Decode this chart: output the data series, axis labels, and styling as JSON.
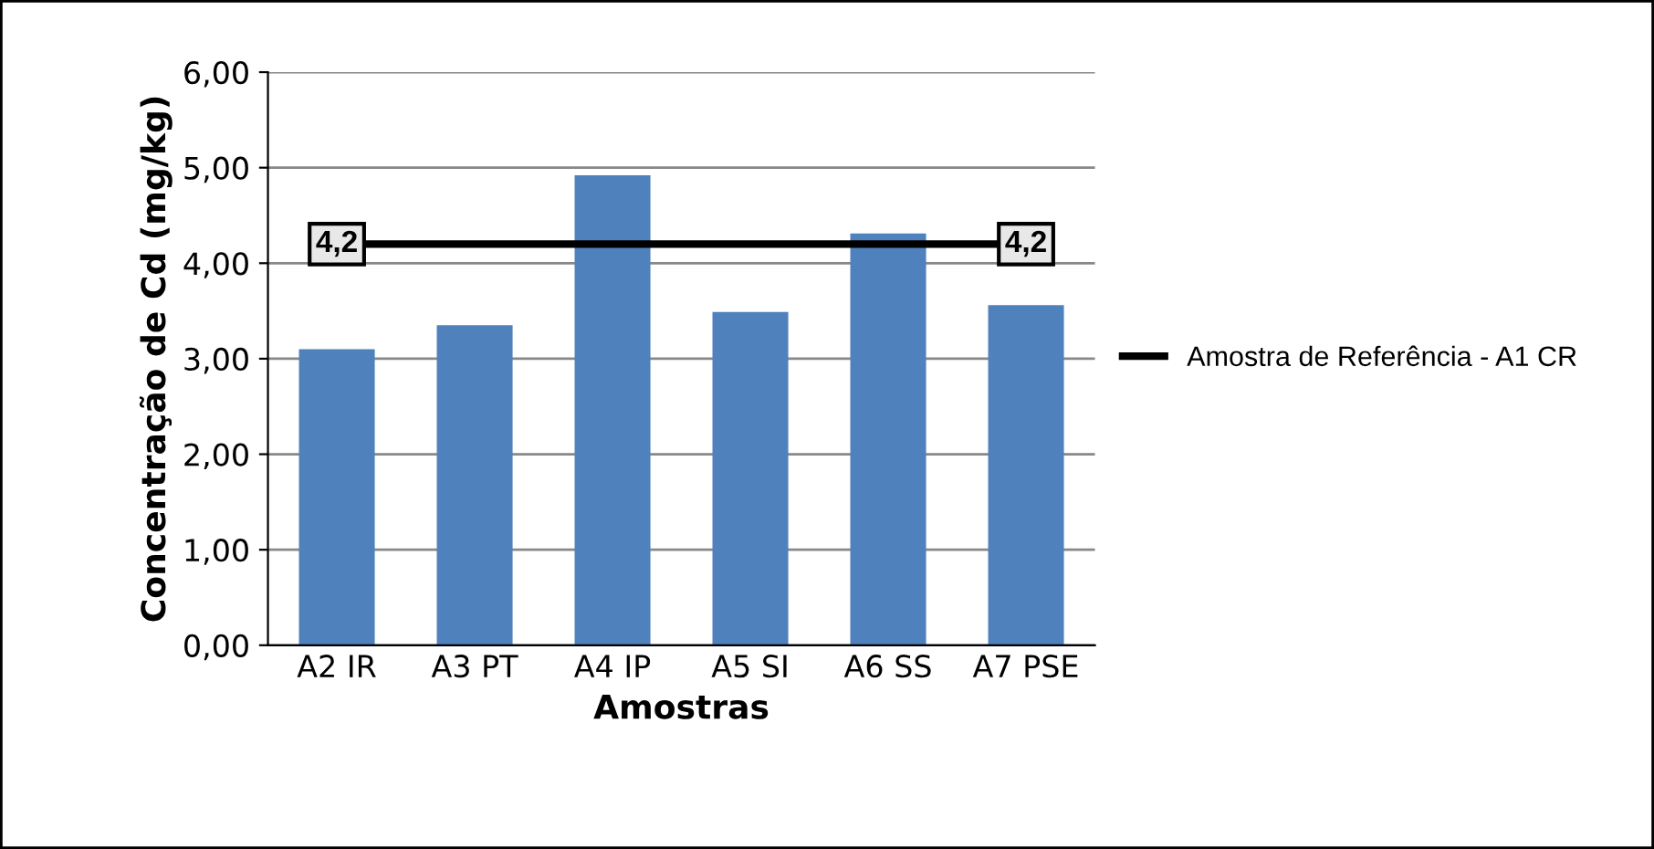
{
  "chart_data": {
    "type": "bar",
    "xlabel": "Amostras",
    "ylabel": "Concentração de Cd (mg/kg)",
    "categories": [
      "A2 IR",
      "A3 PT",
      "A4 IP",
      "A5 SI",
      "A6 SS",
      "A7 PSE"
    ],
    "series": [
      {
        "color": "#4f81bd",
        "values": [
          3.1,
          3.35,
          4.92,
          3.49,
          4.31,
          3.56
        ]
      },
      {
        "type": "line",
        "name": "Amostra de Referência - A1 CR",
        "color": "#000000",
        "values": [
          4.2,
          4.2,
          4.2,
          4.2,
          4.2,
          4.2
        ],
        "value_labels": [
          "4,2",
          null,
          null,
          null,
          null,
          "4,2"
        ]
      }
    ],
    "ylim": [
      0,
      6
    ],
    "yticks": [
      {
        "value": 0,
        "label": "0,00"
      },
      {
        "value": 1,
        "label": "1,00"
      },
      {
        "value": 2,
        "label": "2,00"
      },
      {
        "value": 3,
        "label": "3,00"
      },
      {
        "value": 4,
        "label": "4,00"
      },
      {
        "value": 5,
        "label": "5,00"
      },
      {
        "value": 6,
        "label": "6,00"
      }
    ],
    "grid": "y",
    "legend": "right"
  }
}
